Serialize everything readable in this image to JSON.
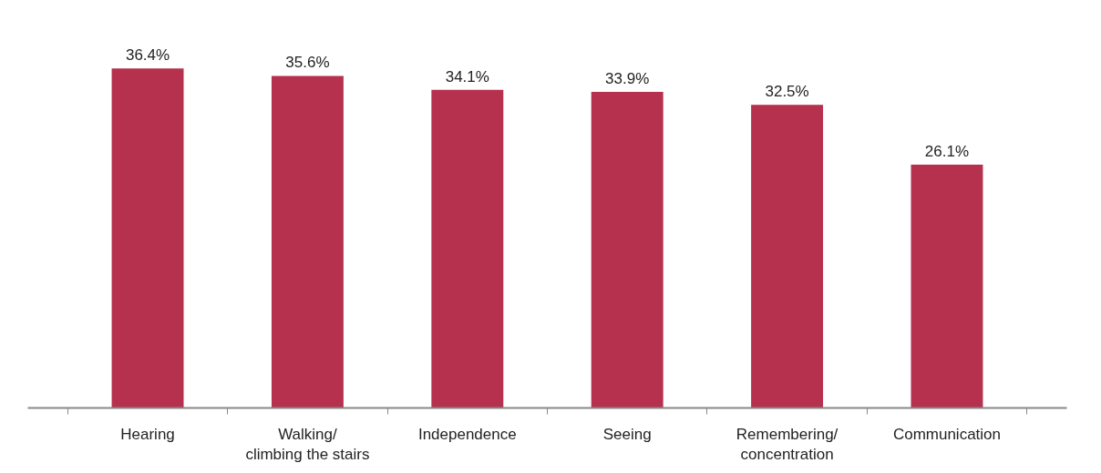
{
  "chart_data": {
    "type": "bar",
    "categories": [
      "Hearing",
      "Walking/\nclimbing the stairs",
      "Independence",
      "Seeing",
      "Remembering/\nconcentration",
      "Communication"
    ],
    "values": [
      36.4,
      35.6,
      34.1,
      33.9,
      32.5,
      26.1
    ],
    "value_labels": [
      "36.4%",
      "35.6%",
      "34.1%",
      "33.9%",
      "32.5%",
      "26.1%"
    ],
    "color": "#b5314d"
  }
}
